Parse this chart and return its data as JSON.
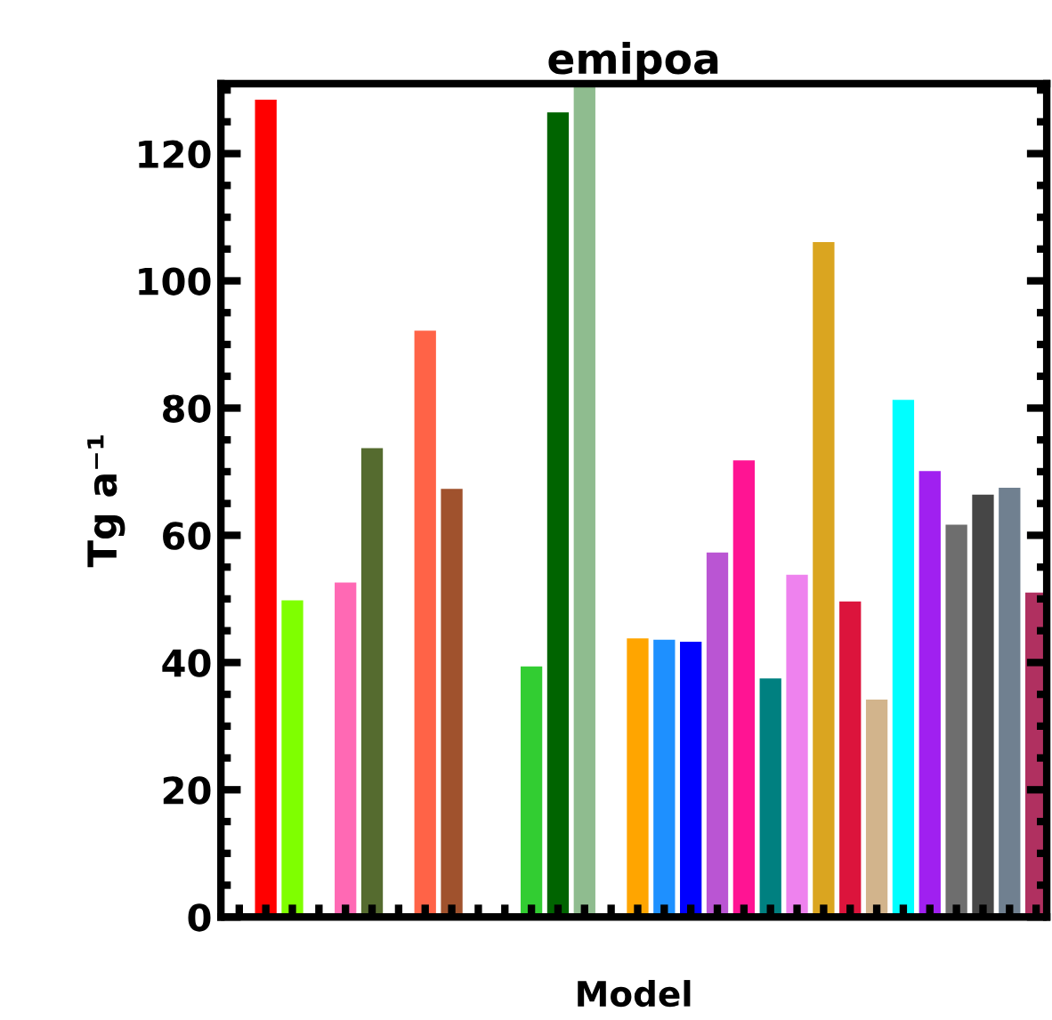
{
  "chart_data": {
    "type": "bar",
    "title": "emipoa",
    "xlabel": "Model",
    "ylabel": "Tg a⁻¹",
    "categories": [
      null,
      null,
      null,
      null,
      null,
      null,
      null,
      null,
      null,
      null,
      null,
      null,
      null,
      null,
      null,
      null,
      null,
      null,
      null,
      null,
      null,
      null,
      null,
      null,
      null,
      null,
      null,
      null,
      null,
      null,
      null
    ],
    "values": [
      null,
      128.6,
      49.9,
      null,
      52.7,
      73.8,
      null,
      92.3,
      67.4,
      null,
      null,
      39.5,
      126.6,
      131,
      null,
      43.9,
      43.7,
      43.4,
      57.4,
      71.9,
      37.6,
      53.9,
      106.2,
      49.7,
      34.3,
      81.4,
      70.2,
      61.8,
      66.5,
      67.6,
      51.1
    ],
    "colors": [
      null,
      "#ff0000",
      "#7fff00",
      null,
      "#ff69b4",
      "#556b2f",
      null,
      "#ff6347",
      "#a0522d",
      null,
      null,
      "#32cd32",
      "#006400",
      "#8fbc8f",
      null,
      "#ffa500",
      "#1e90ff",
      "#0000ff",
      "#ba55d3",
      "#ff1493",
      "#008080",
      "#ee82ee",
      "#daa520",
      "#dc143c",
      "#d2b48c",
      "#00ffff",
      "#a020f0",
      "#6e6e6e",
      "#464646",
      "#708090",
      "#b03060"
    ],
    "ylim": [
      0,
      131
    ],
    "yticks": [
      0,
      20,
      40,
      60,
      80,
      100,
      120
    ],
    "grid": false,
    "legend": false
  }
}
